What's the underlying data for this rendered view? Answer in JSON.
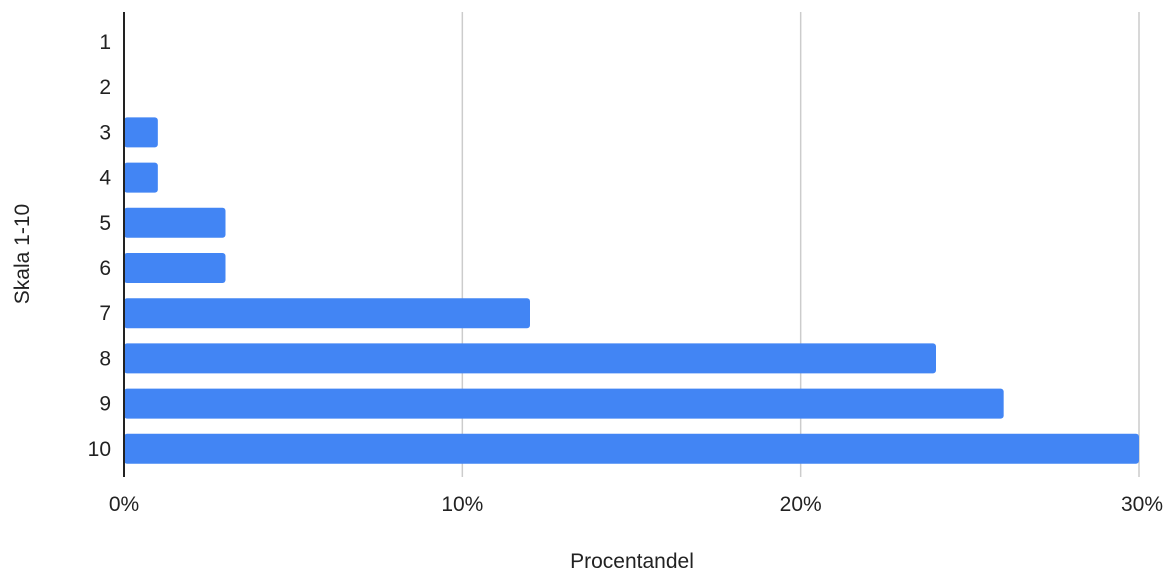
{
  "chart_data": {
    "type": "bar",
    "orientation": "horizontal",
    "categories": [
      "1",
      "2",
      "3",
      "4",
      "5",
      "6",
      "7",
      "8",
      "9",
      "10"
    ],
    "series": [
      {
        "values": [
          0,
          0,
          1,
          1,
          3,
          3,
          12,
          24,
          26,
          30
        ]
      }
    ],
    "xlabel": "Procentandel",
    "ylabel": "Skala 1-10",
    "xlim": [
      0,
      30
    ],
    "x_ticks": [
      0,
      10,
      20,
      30
    ],
    "x_tick_labels": [
      "0%",
      "10%",
      "20%",
      "30%"
    ],
    "value_unit": "percent",
    "grid": "vertical",
    "legend": "none",
    "bar_color": "#4285f4",
    "grid_color": "#cccccc",
    "axis_color": "#222222"
  }
}
